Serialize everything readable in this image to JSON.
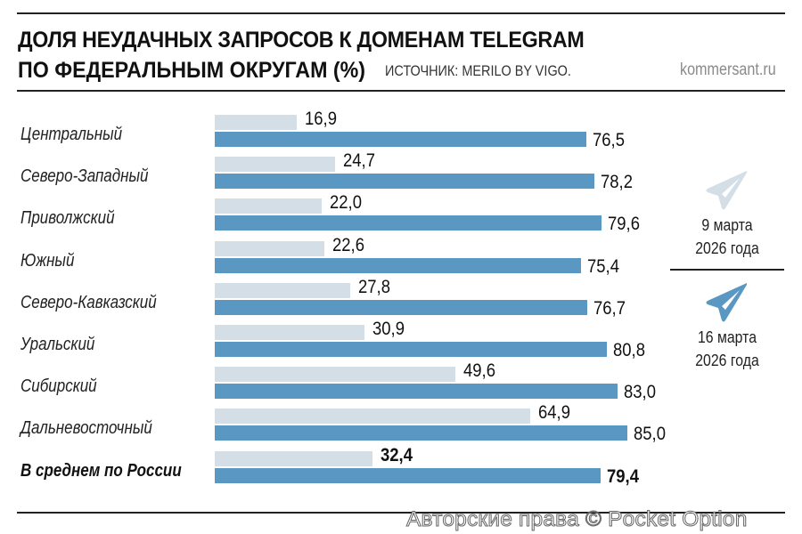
{
  "header": {
    "title_line1": "ДОЛЯ НЕУДАЧНЫХ ЗАПРОСОВ К ДОМЕНАМ TELEGRAM",
    "title_line2": "ПО ФЕДЕРАЛЬНЫМ ОКРУГАМ (%)",
    "source": "ИСТОЧНИК: MERILO BY VIGO.",
    "brand": "kommersant.ru"
  },
  "legend": {
    "items": [
      {
        "line1": "9 марта",
        "line2": "2026 года",
        "icon": "telegram-plane-icon",
        "color": "#d3dee7"
      },
      {
        "line1": "16 марта",
        "line2": "2026 года",
        "icon": "telegram-plane-icon",
        "color": "#5a98c3"
      }
    ]
  },
  "rows": [
    {
      "label": "Центральный",
      "prev": "16,9",
      "curr": "76,5"
    },
    {
      "label": "Северо-Западный",
      "prev": "24,7",
      "curr": "78,2"
    },
    {
      "label": "Приволжский",
      "prev": "22,0",
      "curr": "79,6"
    },
    {
      "label": "Южный",
      "prev": "22,6",
      "curr": "75,4"
    },
    {
      "label": "Северо-Кавказский",
      "prev": "27,8",
      "curr": "76,7"
    },
    {
      "label": "Уральский",
      "prev": "30,9",
      "curr": "80,8"
    },
    {
      "label": "Сибирский",
      "prev": "49,6",
      "curr": "83,0"
    },
    {
      "label": "Дальневосточный",
      "prev": "64,9",
      "curr": "85,0"
    },
    {
      "label": "В среднем по России",
      "prev": "32,4",
      "curr": "79,4"
    }
  ],
  "watermark": "Авторские права © Pocket Option",
  "colors": {
    "prev_bar": "#d3dee7",
    "curr_bar": "#5a98c3"
  },
  "chart_data": {
    "type": "bar",
    "orientation": "horizontal",
    "title": "Доля неудачных запросов к доменам Telegram по федеральным округам (%)",
    "subtitle": "Источник: Merilo by Vigo.",
    "categories": [
      "Центральный",
      "Северо-Западный",
      "Приволжский",
      "Южный",
      "Северо-Кавказский",
      "Уральский",
      "Сибирский",
      "Дальневосточный",
      "В среднем по России"
    ],
    "series": [
      {
        "name": "9 марта 2026 года",
        "color": "#d3dee7",
        "values": [
          16.9,
          24.7,
          22.0,
          22.6,
          27.8,
          30.9,
          49.6,
          64.9,
          32.4
        ]
      },
      {
        "name": "16 марта 2026 года",
        "color": "#5a98c3",
        "values": [
          76.5,
          78.2,
          79.6,
          75.4,
          76.7,
          80.8,
          83.0,
          85.0,
          79.4
        ]
      }
    ],
    "xlabel": "",
    "ylabel": "",
    "unit": "%",
    "grid": false,
    "legend_position": "right",
    "data_labels": true
  }
}
